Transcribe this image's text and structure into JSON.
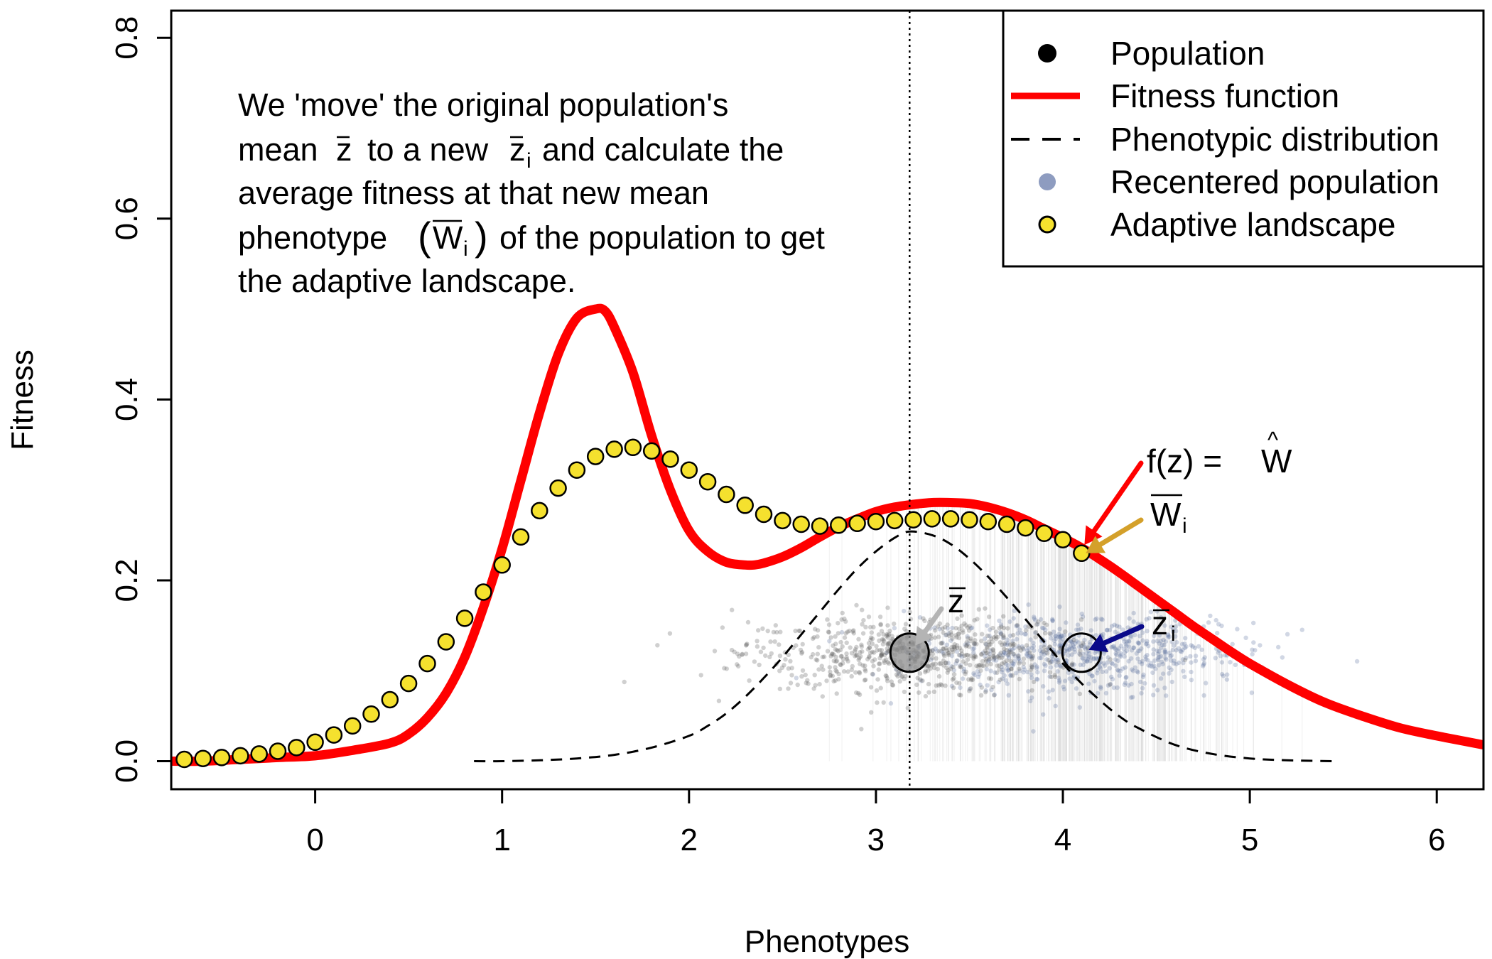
{
  "chart_data": {
    "type": "scatter",
    "xlabel": "Phenotypes",
    "ylabel": "Fitness",
    "xlim": [
      -0.77,
      6.25
    ],
    "ylim": [
      -0.031,
      0.83
    ],
    "x_ticks": [
      0,
      1,
      2,
      3,
      4,
      5,
      6
    ],
    "y_ticks": [
      0.0,
      0.2,
      0.4,
      0.6,
      0.8
    ],
    "x_tick_labels": [
      "0",
      "1",
      "2",
      "3",
      "4",
      "5",
      "6"
    ],
    "y_tick_labels": [
      "0.0",
      "0.2",
      "0.4",
      "0.6",
      "0.8"
    ],
    "grid": false,
    "legend_position": "top-right",
    "legend": [
      {
        "label": "Population",
        "symbol": "point",
        "color": "#000000"
      },
      {
        "label": "Fitness function",
        "symbol": "line",
        "color": "#ff0000"
      },
      {
        "label": "Phenotypic distribution",
        "symbol": "dashed-line",
        "color": "#000000"
      },
      {
        "label": "Recentered population",
        "symbol": "point",
        "color": "#8090b8"
      },
      {
        "label": "Adaptive landscape",
        "symbol": "point",
        "color": "#f5e12e"
      }
    ],
    "annotation_lines": [
      "We 'move' the original population's",
      "mean",
      "to a new",
      "and calculate the",
      "average fitness at that new mean",
      "phenotype",
      "of the population to get",
      "the adaptive landscape."
    ],
    "symbols": {
      "z": "z",
      "i": "i",
      "W": "W",
      "f_of_z": "f(z) = ",
      "W_hat": "W",
      "hat": "^",
      "open_paren": "(",
      "close_paren": ")"
    },
    "population_mean": 3.18,
    "recentered_mean": 4.1,
    "vertical_line_x": 3.18,
    "fitness_function": {
      "x": [
        -0.77,
        -0.6,
        -0.4,
        -0.2,
        0.0,
        0.2,
        0.4,
        0.5,
        0.6,
        0.7,
        0.8,
        0.9,
        1.0,
        1.1,
        1.2,
        1.3,
        1.4,
        1.5,
        1.55,
        1.6,
        1.7,
        1.8,
        1.9,
        2.0,
        2.1,
        2.2,
        2.3,
        2.35,
        2.4,
        2.5,
        2.6,
        2.7,
        2.8,
        2.9,
        3.0,
        3.1,
        3.2,
        3.3,
        3.4,
        3.5,
        3.6,
        3.7,
        3.8,
        3.9,
        4.0,
        4.1,
        4.2,
        4.3,
        4.4,
        4.5,
        4.6,
        4.7,
        4.8,
        4.9,
        5.0,
        5.2,
        5.4,
        5.6,
        5.8,
        6.0,
        6.25
      ],
      "y": [
        0.0,
        0.0,
        0.002,
        0.004,
        0.006,
        0.012,
        0.02,
        0.03,
        0.048,
        0.075,
        0.115,
        0.17,
        0.235,
        0.31,
        0.385,
        0.45,
        0.49,
        0.5,
        0.498,
        0.48,
        0.43,
        0.36,
        0.3,
        0.255,
        0.232,
        0.22,
        0.217,
        0.217,
        0.219,
        0.226,
        0.236,
        0.248,
        0.259,
        0.268,
        0.276,
        0.281,
        0.284,
        0.286,
        0.286,
        0.285,
        0.281,
        0.275,
        0.267,
        0.257,
        0.247,
        0.236,
        0.223,
        0.209,
        0.194,
        0.179,
        0.164,
        0.149,
        0.135,
        0.121,
        0.108,
        0.085,
        0.065,
        0.05,
        0.037,
        0.028,
        0.018
      ]
    },
    "adaptive_landscape": {
      "x": [
        -0.7,
        -0.6,
        -0.5,
        -0.4,
        -0.3,
        -0.2,
        -0.1,
        0.0,
        0.1,
        0.2,
        0.3,
        0.4,
        0.5,
        0.6,
        0.7,
        0.8,
        0.9,
        1.0,
        1.1,
        1.2,
        1.3,
        1.4,
        1.5,
        1.6,
        1.7,
        1.8,
        1.9,
        2.0,
        2.1,
        2.2,
        2.3,
        2.4,
        2.5,
        2.6,
        2.7,
        2.8,
        2.9,
        3.0,
        3.1,
        3.2,
        3.3,
        3.4,
        3.5,
        3.6,
        3.7,
        3.8,
        3.9,
        4.0,
        4.1
      ],
      "y": [
        0.002,
        0.003,
        0.004,
        0.006,
        0.008,
        0.011,
        0.015,
        0.021,
        0.029,
        0.039,
        0.052,
        0.068,
        0.086,
        0.108,
        0.132,
        0.158,
        0.187,
        0.217,
        0.248,
        0.277,
        0.302,
        0.322,
        0.337,
        0.345,
        0.347,
        0.343,
        0.334,
        0.322,
        0.309,
        0.295,
        0.283,
        0.273,
        0.266,
        0.262,
        0.26,
        0.261,
        0.263,
        0.265,
        0.266,
        0.267,
        0.268,
        0.268,
        0.267,
        0.265,
        0.262,
        0.258,
        0.252,
        0.245,
        0.23
      ]
    },
    "phenotypic_distribution": {
      "x": [
        0.85,
        1.0,
        1.2,
        1.4,
        1.6,
        1.8,
        2.0,
        2.1,
        2.2,
        2.3,
        2.4,
        2.5,
        2.6,
        2.7,
        2.8,
        2.9,
        3.0,
        3.1,
        3.18,
        3.3,
        3.4,
        3.5,
        3.6,
        3.7,
        3.8,
        3.9,
        4.0,
        4.1,
        4.2,
        4.3,
        4.4,
        4.6,
        4.8,
        5.0,
        5.2,
        5.45
      ],
      "y": [
        0.0,
        0.0,
        0.001,
        0.003,
        0.007,
        0.015,
        0.028,
        0.039,
        0.053,
        0.071,
        0.092,
        0.115,
        0.14,
        0.165,
        0.19,
        0.213,
        0.232,
        0.247,
        0.254,
        0.25,
        0.24,
        0.224,
        0.204,
        0.181,
        0.157,
        0.132,
        0.108,
        0.086,
        0.067,
        0.05,
        0.037,
        0.018,
        0.008,
        0.003,
        0.001,
        0.0
      ]
    }
  }
}
